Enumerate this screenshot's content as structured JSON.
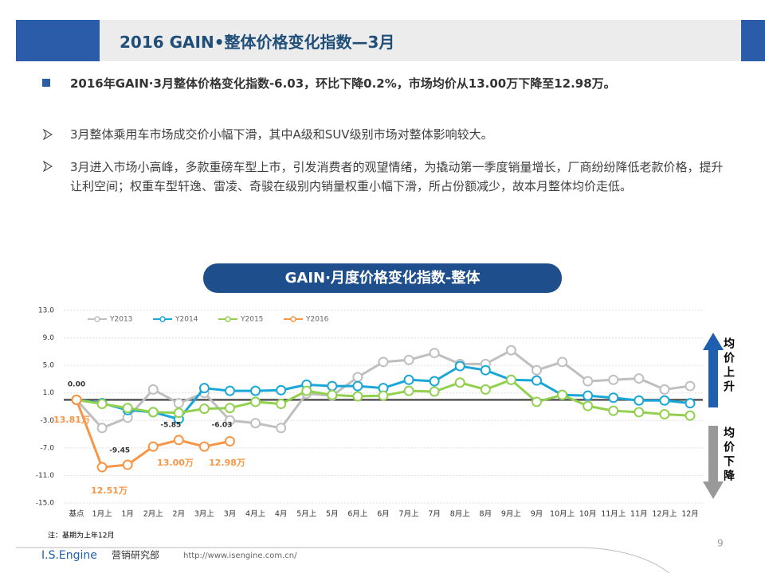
{
  "header": {
    "title": "2016 GAIN•整体价格变化指数—3月"
  },
  "bullets": [
    "2016年GAIN·3月整体价格变化指数-6.03，环比下降0.2%，市场均价从13.00万下降至12.98万。",
    "3月整体乘用车市场成交价小幅下滑，其中A级和SUV级别市场对整体影响较大。",
    "3月进入市场小高峰，多款重磅车型上市，引发消费者的观望情绪，为撬动第一季度销量增长，厂商纷纷降低老款价格，提升让利空间；权重车型轩逸、雷凌、奇骏在级别内销量权重小幅下滑，所占份额减少，故本月整体均价走低。"
  ],
  "chart_data": {
    "type": "line",
    "title": "GAIN·月度价格变化指数-整体",
    "categories": [
      "基点",
      "1月上",
      "1月",
      "2月上",
      "2月",
      "3月上",
      "3月",
      "4月上",
      "4月",
      "5月上",
      "5月",
      "6月上",
      "6月",
      "7月上",
      "7月",
      "8月上",
      "8月",
      "9月上",
      "9月",
      "10月上",
      "10月",
      "11月上",
      "11月",
      "12月上",
      "12月"
    ],
    "series": [
      {
        "name": "Y2013",
        "color": "#bfbfbf",
        "values": [
          0,
          -4.1,
          -2.6,
          1.5,
          -0.5,
          1.0,
          -3,
          -3.4,
          -4.1,
          0.9,
          0.6,
          3.3,
          5.5,
          5.8,
          6.8,
          5.2,
          5.2,
          7.2,
          4.3,
          5.5,
          2.7,
          2.9,
          3.1,
          1.5,
          2.0
        ]
      },
      {
        "name": "Y2014",
        "color": "#1aa7d8",
        "values": [
          0,
          -0.5,
          -1.5,
          -1.8,
          -2.8,
          1.7,
          1.3,
          1.3,
          1.4,
          2.2,
          2.0,
          2.0,
          1.7,
          2.9,
          2.7,
          4.9,
          4.3,
          2.9,
          2.8,
          0.7,
          0.6,
          0.3,
          -0.1,
          -0.1,
          -0.5
        ]
      },
      {
        "name": "Y2015",
        "color": "#92d050",
        "values": [
          0,
          -0.6,
          -1.2,
          -1.8,
          -1.9,
          -1.3,
          -1.2,
          -0.3,
          -0.6,
          1.3,
          0.7,
          0.5,
          0.6,
          1.3,
          1.2,
          2.5,
          1.5,
          2.9,
          -0.3,
          0.7,
          -0.9,
          -1.6,
          -1.8,
          -2.1,
          -2.3
        ]
      },
      {
        "name": "Y2016",
        "color": "#f79646",
        "values": [
          0,
          -9.8,
          -9.45,
          -6.8,
          -5.85,
          -6.8,
          -6.03,
          null,
          null,
          null,
          null,
          null,
          null,
          null,
          null,
          null,
          null,
          null,
          null,
          null,
          null,
          null,
          null,
          null,
          null
        ],
        "value_labels": [
          "0.00",
          null,
          "-9.45",
          null,
          "-5.85",
          null,
          "-6.03",
          null,
          null,
          null,
          null,
          null,
          null,
          null,
          null,
          null,
          null,
          null,
          null,
          null,
          null,
          null,
          null,
          null,
          null
        ]
      }
    ],
    "ylim": [
      -15,
      13
    ],
    "yticks": [
      {
        "value": 13,
        "label": "13.0"
      },
      {
        "value": 9,
        "label": "9.0"
      },
      {
        "value": 5,
        "label": "5.0"
      },
      {
        "value": 1,
        "label": "1.0"
      },
      {
        "value": -3,
        "label": "-3.0"
      },
      {
        "value": -7,
        "label": "-7.0"
      },
      {
        "value": -11,
        "label": "-11.0"
      },
      {
        "value": -15,
        "label": "-15.0"
      }
    ],
    "grid": true,
    "legend": "top",
    "annotations": [
      "13.81万",
      "12.51万",
      "13.00万",
      "12.98万"
    ],
    "side_labels": [
      "均价上升",
      "均价下降"
    ],
    "note": "注：基期为上年12月"
  },
  "footer": {
    "brand": "I.S.Engine",
    "dept": "营销研究部",
    "url": "http://www.isengine.com.cn/",
    "page": "9"
  }
}
